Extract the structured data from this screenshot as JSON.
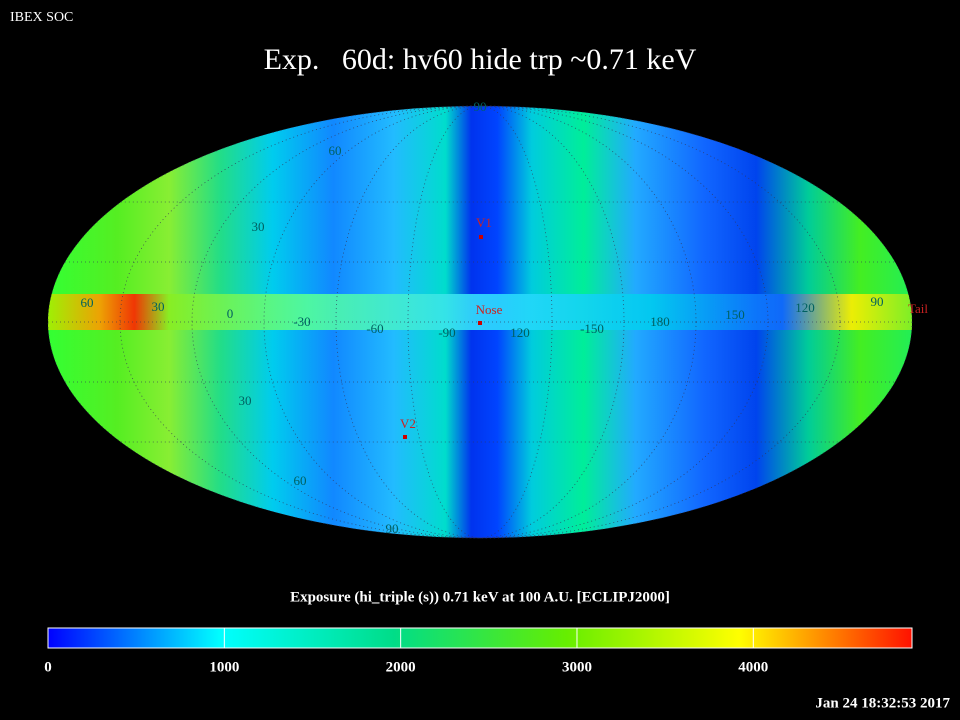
{
  "header": {
    "badge": "IBEX SOC",
    "title": "Exp.   60d: hv60 hide trp ~0.71 keV"
  },
  "map": {
    "grid_labels": [
      "90",
      "60",
      "30",
      "60",
      "30",
      "0",
      "-30",
      "-60",
      "-90",
      "120",
      "-150",
      "180",
      "150",
      "120",
      "90",
      "30",
      "60",
      "90"
    ],
    "markers": [
      "V1",
      "Nose",
      "V2",
      "Tail"
    ]
  },
  "colorbar": {
    "label": "Exposure (hi_triple (s))  0.71 keV at 100 A.U. [ECLIPJ2000]",
    "lim": [
      0,
      4900
    ],
    "ticks": [
      0,
      1000,
      2000,
      3000,
      4000
    ]
  },
  "footer": {
    "timestamp": "Jan 24 18:32:53 2017"
  }
}
